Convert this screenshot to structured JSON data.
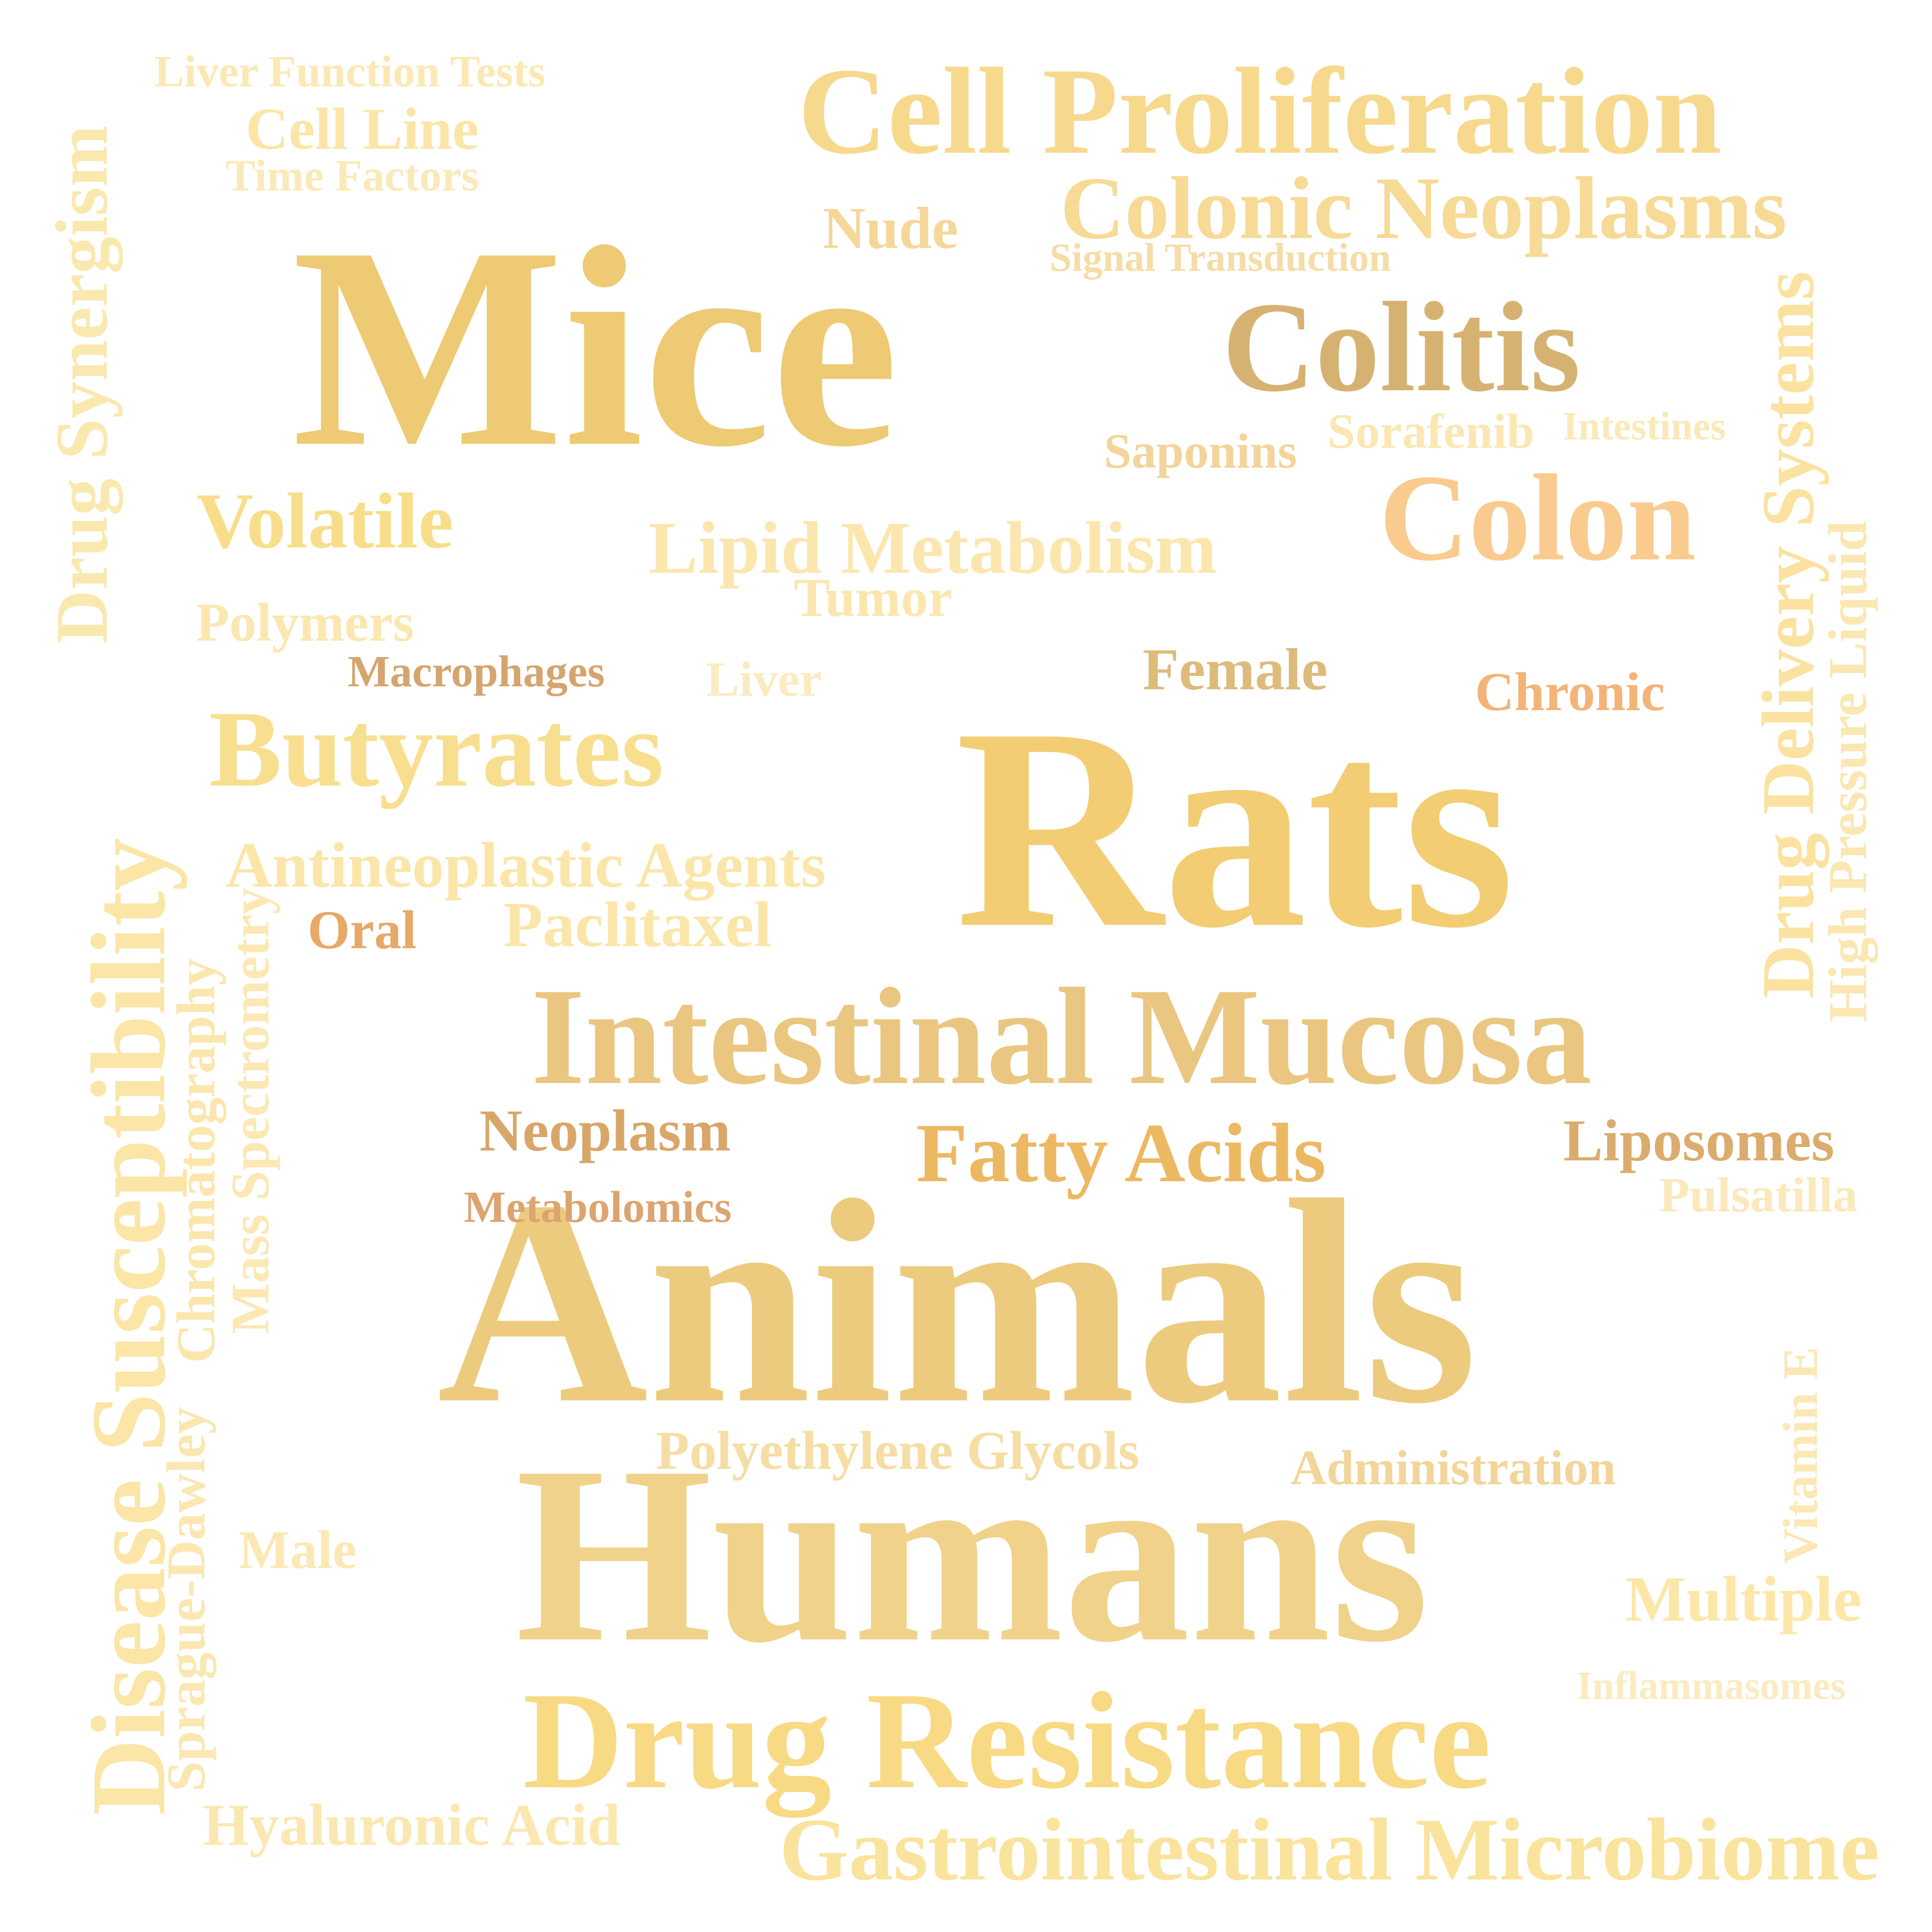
{
  "words": [
    {
      "text": "Mice",
      "color": "#EDCA73"
    },
    {
      "text": "Rats",
      "color": "#F2CD73"
    },
    {
      "text": "Animals",
      "color": "#EDCB7E"
    },
    {
      "text": "Humans",
      "color": "#F0D28B"
    },
    {
      "text": "Cell Proliferation",
      "color": "#F7D98E"
    },
    {
      "text": "Colonic Neoplasms",
      "color": "#F6DA96"
    },
    {
      "text": "Intestinal Mucosa",
      "color": "#EAC681"
    },
    {
      "text": "Drug Resistance",
      "color": "#F8DA85"
    },
    {
      "text": "Colitis",
      "color": "#D6B272"
    },
    {
      "text": "Colon",
      "color": "#F9CB8E"
    },
    {
      "text": "Butyrates",
      "color": "#F8DF8F"
    },
    {
      "text": "Volatile",
      "color": "#F8DE8A"
    },
    {
      "text": "Lipid Metabolism",
      "color": "#FBE6AE"
    },
    {
      "text": "Fatty Acids",
      "color": "#EDB862"
    },
    {
      "text": "Gastrointestinal Microbiome",
      "color": "#FAE39C"
    },
    {
      "text": "Disease Susceptibility",
      "color": "#FBE6A8"
    },
    {
      "text": "Antineoplastic Agents",
      "color": "#FBE6A9"
    },
    {
      "text": "Drug Synergism",
      "color": "#FAE9AE"
    },
    {
      "text": "Drug Delivery Systems",
      "color": "#FBE2A0"
    },
    {
      "text": "Tumor",
      "color": "#FBE7AE"
    },
    {
      "text": "Paclitaxel",
      "color": "#FBE6AA"
    },
    {
      "text": "Female",
      "color": "#DCBB7B"
    },
    {
      "text": "Neoplasm",
      "color": "#D9A669"
    },
    {
      "text": "Liposomes",
      "color": "#DAAC6D"
    },
    {
      "text": "Multiple",
      "color": "#FCE7A8"
    },
    {
      "text": "Hyaluronic Acid",
      "color": "#FBE8B1"
    },
    {
      "text": "Polyethylene Glycols",
      "color": "#F6DDA3"
    },
    {
      "text": "Administration",
      "color": "#F3D59A"
    },
    {
      "text": "Cell Line",
      "color": "#FBE6A8"
    },
    {
      "text": "Nude",
      "color": "#F5D79A"
    },
    {
      "text": "Liver Function Tests",
      "color": "#FBE8B4"
    },
    {
      "text": "Time Factors",
      "color": "#FBE9B8"
    },
    {
      "text": "Signal Transduction",
      "color": "#F6DCA6"
    },
    {
      "text": "Saponins",
      "color": "#F3D49A"
    },
    {
      "text": "Sorafenib",
      "color": "#FBE7B3"
    },
    {
      "text": "Intestines",
      "color": "#FBE9B8"
    },
    {
      "text": "Polymers",
      "color": "#FBE7B0"
    },
    {
      "text": "Macrophages",
      "color": "#D6A46E"
    },
    {
      "text": "Liver",
      "color": "#FBEBC0"
    },
    {
      "text": "Chronic",
      "color": "#F3B478"
    },
    {
      "text": "Oral",
      "color": "#E8A866"
    },
    {
      "text": "Metabolomics",
      "color": "#DCA470"
    },
    {
      "text": "Pulsatilla",
      "color": "#FBE9BC"
    },
    {
      "text": "Male",
      "color": "#FBE8B4"
    },
    {
      "text": "Inflammasomes",
      "color": "#FBEBC0"
    },
    {
      "text": "Vitamin E",
      "color": "#FBE8B4"
    },
    {
      "text": "High Pressure Liquid",
      "color": "#FBE7B2"
    },
    {
      "text": "Chromatography",
      "color": "#FBE6AE"
    },
    {
      "text": "Mass Spectrometry",
      "color": "#FBE8B4"
    },
    {
      "text": "Sprague-Dawley",
      "color": "#FBE7B1"
    }
  ]
}
